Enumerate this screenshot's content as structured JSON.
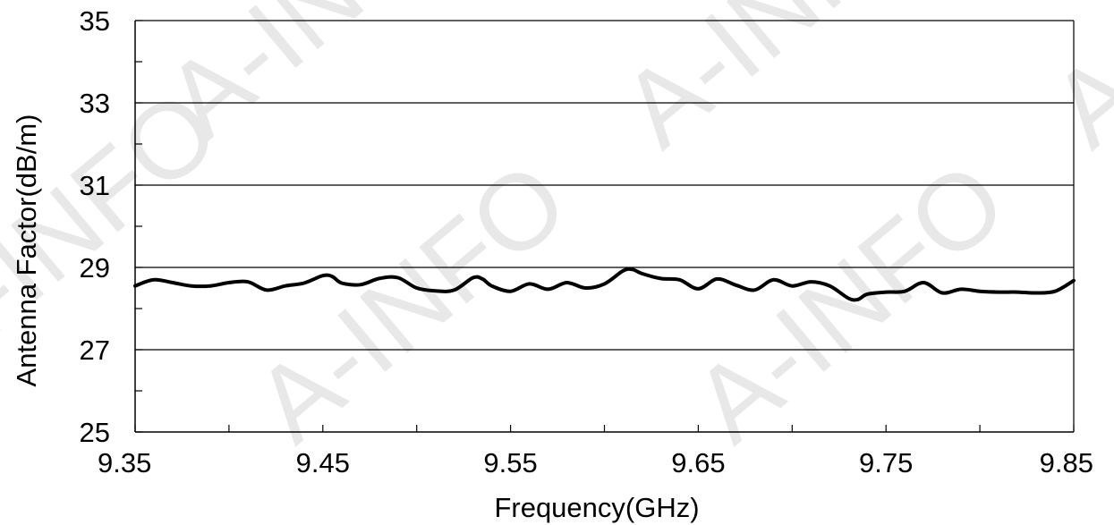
{
  "watermark": "A-INFO",
  "chart_data": {
    "type": "line",
    "title": "",
    "xlabel": "Frequency(GHz)",
    "ylabel": "Antenna Factor(dB/m)",
    "xlim": [
      9.35,
      9.85
    ],
    "ylim": [
      25,
      35
    ],
    "xticks": [
      "9.35",
      "9.45",
      "9.55",
      "9.65",
      "9.75",
      "9.85"
    ],
    "yticks": [
      "25",
      "27",
      "29",
      "31",
      "33",
      "35"
    ],
    "grid": "horizontal",
    "line_color": "#000000",
    "series": [
      {
        "name": "",
        "x": [
          9.35,
          9.36,
          9.37,
          9.38,
          9.39,
          9.4,
          9.41,
          9.42,
          9.43,
          9.44,
          9.45,
          9.455,
          9.46,
          9.47,
          9.48,
          9.49,
          9.5,
          9.51,
          9.52,
          9.53,
          9.535,
          9.54,
          9.55,
          9.56,
          9.57,
          9.58,
          9.59,
          9.6,
          9.61,
          9.615,
          9.62,
          9.63,
          9.64,
          9.65,
          9.66,
          9.67,
          9.68,
          9.69,
          9.7,
          9.71,
          9.72,
          9.73,
          9.735,
          9.74,
          9.75,
          9.76,
          9.77,
          9.78,
          9.79,
          9.8,
          9.81,
          9.82,
          9.83,
          9.84,
          9.85
        ],
        "y": [
          28.55,
          28.7,
          28.63,
          28.55,
          28.55,
          28.63,
          28.65,
          28.45,
          28.55,
          28.62,
          28.8,
          28.78,
          28.62,
          28.58,
          28.73,
          28.75,
          28.5,
          28.43,
          28.45,
          28.75,
          28.72,
          28.55,
          28.42,
          28.6,
          28.47,
          28.63,
          28.5,
          28.6,
          28.92,
          28.95,
          28.85,
          28.73,
          28.7,
          28.48,
          28.72,
          28.57,
          28.45,
          28.7,
          28.55,
          28.65,
          28.55,
          28.25,
          28.22,
          28.35,
          28.4,
          28.42,
          28.63,
          28.38,
          28.47,
          28.42,
          28.4,
          28.4,
          28.38,
          28.42,
          28.68
        ]
      }
    ]
  }
}
